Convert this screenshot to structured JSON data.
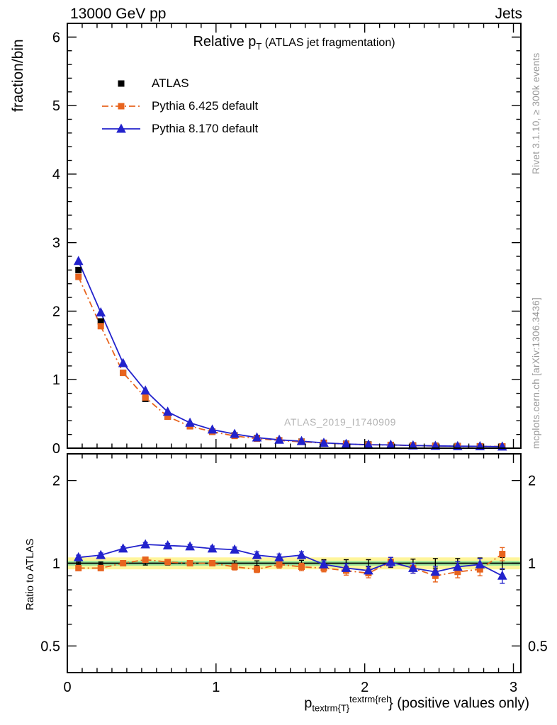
{
  "header": {
    "left": "13000 GeV pp",
    "right": "Jets"
  },
  "title": {
    "main": "Relative p",
    "sub": "T",
    "suffix": " (ATLAS jet fragmentation)"
  },
  "xlabel": {
    "main": "p",
    "sub": "textrm{T}",
    "sup": "textrm{rel",
    "suffix": "} (positive values only)"
  },
  "watermark": "ATLAS_2019_I1740909",
  "side_notes": {
    "top": "Rivet 3.1.10, ≥ 300k events",
    "bottom": "mcplots.cern.ch [arXiv:1306.3436]"
  },
  "legend": [
    {
      "label": "ATLAS",
      "color": "#000000",
      "marker": "square",
      "line": "none"
    },
    {
      "label": "Pythia 6.425 default",
      "color": "#e8641e",
      "marker": "square",
      "line": "dashdot"
    },
    {
      "label": "Pythia 8.170 default",
      "color": "#2222cc",
      "marker": "triangle",
      "line": "solid"
    }
  ],
  "axis_tick_labels": {
    "main_y": [
      "0",
      "1",
      "2",
      "3",
      "4",
      "5",
      "6"
    ],
    "ratio_y": [
      "0.5",
      "1",
      "2"
    ],
    "x": [
      "0",
      "1",
      "2",
      "3"
    ]
  },
  "chart_data": {
    "type": "line",
    "title": "Relative pT (ATLAS jet fragmentation)",
    "xlabel": "pT^rel (positive values only)",
    "xlim": [
      0,
      3.05
    ],
    "x": [
      0.075,
      0.225,
      0.375,
      0.525,
      0.675,
      0.825,
      0.975,
      1.125,
      1.275,
      1.425,
      1.575,
      1.725,
      1.875,
      2.025,
      2.175,
      2.325,
      2.475,
      2.625,
      2.775,
      2.925
    ],
    "main_panel": {
      "ylabel": "fraction/bin",
      "ylim": [
        0,
        6.2
      ],
      "yticks": [
        0,
        1,
        2,
        3,
        4,
        5,
        6
      ],
      "xticks": [
        0,
        1,
        2,
        3
      ],
      "series": [
        {
          "name": "ATLAS",
          "color": "#000000",
          "marker": "square",
          "line": "none",
          "values": [
            2.6,
            1.85,
            1.1,
            0.72,
            0.46,
            0.32,
            0.24,
            0.185,
            0.145,
            0.115,
            0.095,
            0.078,
            0.064,
            0.054,
            0.047,
            0.04,
            0.035,
            0.03,
            0.027,
            0.024
          ]
        },
        {
          "name": "Pythia 6.425 default",
          "color": "#e8641e",
          "marker": "square",
          "line": "dashdot",
          "values": [
            2.5,
            1.78,
            1.1,
            0.74,
            0.46,
            0.32,
            0.24,
            0.179,
            0.138,
            0.114,
            0.092,
            0.075,
            0.06,
            0.05,
            0.047,
            0.038,
            0.032,
            0.028,
            0.026,
            0.026
          ]
        },
        {
          "name": "Pythia 8.170 default",
          "color": "#2222cc",
          "marker": "triangle",
          "line": "solid",
          "values": [
            2.73,
            1.98,
            1.24,
            0.84,
            0.53,
            0.37,
            0.27,
            0.207,
            0.155,
            0.121,
            0.102,
            0.077,
            0.061,
            0.051,
            0.048,
            0.039,
            0.033,
            0.029,
            0.027,
            0.022
          ]
        }
      ]
    },
    "ratio_panel": {
      "ylabel": "Ratio to ATLAS",
      "yscale": "log",
      "ylim": [
        0.4,
        2.5
      ],
      "yticks": [
        0.5,
        1,
        2
      ],
      "minor_yticks": [
        0.4,
        0.6,
        0.7,
        0.8,
        0.9
      ],
      "bands": [
        {
          "lo": 0.95,
          "hi": 1.05,
          "color": "#fff59b"
        },
        {
          "lo": 0.98,
          "hi": 1.02,
          "color": "#9be69b"
        }
      ],
      "series": [
        {
          "name": "ATLAS",
          "color": "#000000",
          "marker": "none",
          "line": "solid",
          "values": [
            1,
            1,
            1,
            1,
            1,
            1,
            1,
            1,
            1,
            1,
            1,
            1,
            1,
            1,
            1,
            1,
            1,
            1,
            1,
            1
          ],
          "errors": [
            0.01,
            0.01,
            0.01,
            0.015,
            0.015,
            0.015,
            0.02,
            0.02,
            0.02,
            0.025,
            0.025,
            0.03,
            0.03,
            0.03,
            0.035,
            0.035,
            0.04,
            0.04,
            0.045,
            0.05
          ]
        },
        {
          "name": "Pythia 6.425 default",
          "color": "#e8641e",
          "marker": "square",
          "line": "dashdot",
          "values": [
            0.96,
            0.96,
            1.0,
            1.03,
            1.01,
            1.0,
            1.0,
            0.97,
            0.95,
            0.99,
            0.97,
            0.96,
            0.94,
            0.92,
            1.01,
            0.96,
            0.9,
            0.93,
            0.95,
            1.08
          ],
          "errors": [
            0.015,
            0.015,
            0.015,
            0.02,
            0.02,
            0.02,
            0.02,
            0.025,
            0.025,
            0.03,
            0.03,
            0.03,
            0.035,
            0.035,
            0.04,
            0.04,
            0.045,
            0.045,
            0.05,
            0.06
          ]
        },
        {
          "name": "Pythia 8.170 default",
          "color": "#2222cc",
          "marker": "triangle",
          "line": "solid",
          "values": [
            1.05,
            1.07,
            1.13,
            1.17,
            1.16,
            1.15,
            1.13,
            1.12,
            1.07,
            1.05,
            1.07,
            0.99,
            0.96,
            0.94,
            1.01,
            0.96,
            0.93,
            0.97,
            0.99,
            0.9
          ],
          "errors": [
            0.02,
            0.02,
            0.02,
            0.02,
            0.02,
            0.02,
            0.025,
            0.025,
            0.03,
            0.03,
            0.03,
            0.03,
            0.035,
            0.035,
            0.04,
            0.04,
            0.045,
            0.045,
            0.05,
            0.055
          ]
        }
      ]
    }
  }
}
